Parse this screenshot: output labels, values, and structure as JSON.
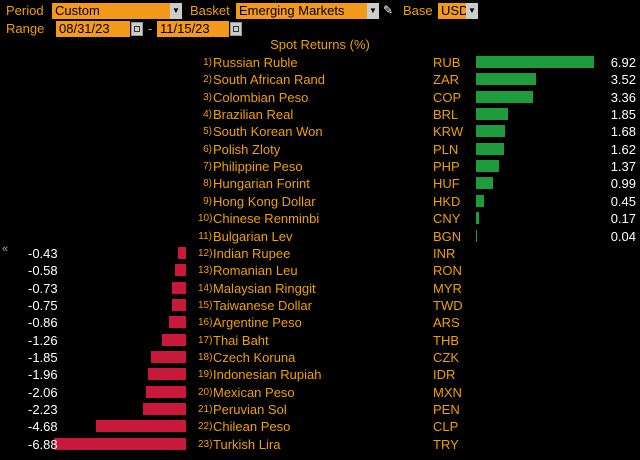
{
  "toolbar": {
    "period_label": "Period",
    "period_value": "Custom",
    "basket_label": "Basket",
    "basket_value": "Emerging Markets",
    "base_label": "Base",
    "base_value": "USD",
    "range_label": "Range",
    "range_start": "08/31/23",
    "range_sep": "-",
    "range_end": "11/15/23"
  },
  "icons": {
    "dropdown": "chevron-down-icon",
    "calendar": "calendar-icon",
    "edit": "pencil-icon",
    "collapse": "double-chevron-left-icon"
  },
  "colors": {
    "positive": "#1e9b3a",
    "negative": "#c8193a",
    "label": "#f0a000",
    "field_bg": "#f49a1b"
  },
  "chart_data": {
    "type": "bar",
    "title": "Spot Returns (%)",
    "rows": [
      {
        "rank": "1)",
        "name": "Russian Ruble",
        "code": "RUB",
        "value": 6.92,
        "label": "6.92"
      },
      {
        "rank": "2)",
        "name": "South African Rand",
        "code": "ZAR",
        "value": 3.52,
        "label": "3.52"
      },
      {
        "rank": "3)",
        "name": "Colombian Peso",
        "code": "COP",
        "value": 3.36,
        "label": "3.36"
      },
      {
        "rank": "4)",
        "name": "Brazilian Real",
        "code": "BRL",
        "value": 1.85,
        "label": "1.85"
      },
      {
        "rank": "5)",
        "name": "South Korean Won",
        "code": "KRW",
        "value": 1.68,
        "label": "1.68"
      },
      {
        "rank": "6)",
        "name": "Polish Zloty",
        "code": "PLN",
        "value": 1.62,
        "label": "1.62"
      },
      {
        "rank": "7)",
        "name": "Philippine Peso",
        "code": "PHP",
        "value": 1.37,
        "label": "1.37"
      },
      {
        "rank": "8)",
        "name": "Hungarian Forint",
        "code": "HUF",
        "value": 0.99,
        "label": "0.99"
      },
      {
        "rank": "9)",
        "name": "Hong Kong Dollar",
        "code": "HKD",
        "value": 0.45,
        "label": "0.45"
      },
      {
        "rank": "10)",
        "name": "Chinese Renminbi",
        "code": "CNY",
        "value": 0.17,
        "label": "0.17"
      },
      {
        "rank": "11)",
        "name": "Bulgarian Lev",
        "code": "BGN",
        "value": 0.04,
        "label": "0.04"
      },
      {
        "rank": "12)",
        "name": "Indian Rupee",
        "code": "INR",
        "value": -0.43,
        "label": "-0.43"
      },
      {
        "rank": "13)",
        "name": "Romanian Leu",
        "code": "RON",
        "value": -0.58,
        "label": "-0.58"
      },
      {
        "rank": "14)",
        "name": "Malaysian Ringgit",
        "code": "MYR",
        "value": -0.73,
        "label": "-0.73"
      },
      {
        "rank": "15)",
        "name": "Taiwanese Dollar",
        "code": "TWD",
        "value": -0.75,
        "label": "-0.75"
      },
      {
        "rank": "16)",
        "name": "Argentine Peso",
        "code": "ARS",
        "value": -0.86,
        "label": "-0.86"
      },
      {
        "rank": "17)",
        "name": "Thai Baht",
        "code": "THB",
        "value": -1.26,
        "label": "-1.26"
      },
      {
        "rank": "18)",
        "name": "Czech Koruna",
        "code": "CZK",
        "value": -1.85,
        "label": "-1.85"
      },
      {
        "rank": "19)",
        "name": "Indonesian Rupiah",
        "code": "IDR",
        "value": -1.96,
        "label": "-1.96"
      },
      {
        "rank": "20)",
        "name": "Mexican Peso",
        "code": "MXN",
        "value": -2.06,
        "label": "-2.06"
      },
      {
        "rank": "21)",
        "name": "Peruvian Sol",
        "code": "PEN",
        "value": -2.23,
        "label": "-2.23"
      },
      {
        "rank": "22)",
        "name": "Chilean Peso",
        "code": "CLP",
        "value": -4.68,
        "label": "-4.68"
      },
      {
        "rank": "23)",
        "name": "Turkish Lira",
        "code": "TRY",
        "value": -6.88,
        "label": "-6.88"
      }
    ]
  }
}
